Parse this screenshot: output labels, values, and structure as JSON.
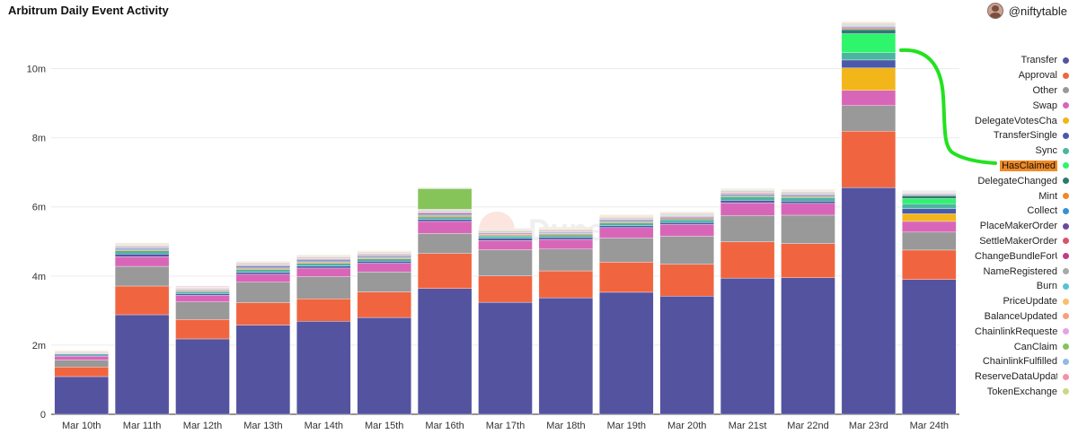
{
  "header": {
    "title": "Arbitrum Daily Event Activity",
    "author": "@niftytable"
  },
  "watermark": "Dune",
  "chart_data": {
    "type": "bar",
    "stacked": true,
    "title": "Arbitrum Daily Event Activity",
    "xlabel": "",
    "ylabel": "",
    "ylim": [
      0,
      11000000
    ],
    "yticks": [
      0,
      2000000,
      4000000,
      6000000,
      8000000,
      10000000
    ],
    "ytick_labels": [
      "0",
      "2m",
      "4m",
      "6m",
      "8m",
      "10m"
    ],
    "legend_position": "right",
    "highlighted_series": "HasClaimed",
    "categories": [
      "Mar 10th",
      "Mar 11th",
      "Mar 12th",
      "Mar 13th",
      "Mar 14th",
      "Mar 15th",
      "Mar 16th",
      "Mar 17th",
      "Mar 18th",
      "Mar 19th",
      "Mar 20th",
      "Mar 21st",
      "Mar 22nd",
      "Mar 23rd",
      "Mar 24th"
    ],
    "series": [
      {
        "name": "Transfer",
        "color": "#5453a0",
        "values": [
          1090000,
          2880000,
          2180000,
          2580000,
          2690000,
          2800000,
          3640000,
          3240000,
          3370000,
          3530000,
          3420000,
          3940000,
          3950000,
          6560000,
          3900000
        ]
      },
      {
        "name": "Approval",
        "color": "#f06540",
        "values": [
          280000,
          830000,
          560000,
          650000,
          650000,
          740000,
          1010000,
          760000,
          780000,
          870000,
          920000,
          1050000,
          990000,
          1630000,
          850000
        ]
      },
      {
        "name": "Other",
        "color": "#999999",
        "values": [
          200000,
          570000,
          510000,
          590000,
          640000,
          580000,
          580000,
          760000,
          630000,
          700000,
          810000,
          760000,
          820000,
          740000,
          520000
        ]
      },
      {
        "name": "Swap",
        "color": "#d866b8",
        "values": [
          110000,
          280000,
          190000,
          230000,
          250000,
          250000,
          350000,
          270000,
          280000,
          300000,
          340000,
          370000,
          340000,
          440000,
          310000
        ]
      },
      {
        "name": "DelegateVotesChanged",
        "color": "#f2b51a",
        "values": [
          0,
          0,
          0,
          0,
          0,
          0,
          0,
          0,
          0,
          0,
          0,
          0,
          0,
          650000,
          220000
        ]
      },
      {
        "name": "TransferSingle",
        "color": "#4a5aa8",
        "values": [
          30000,
          80000,
          50000,
          60000,
          60000,
          60000,
          60000,
          60000,
          60000,
          60000,
          60000,
          70000,
          70000,
          230000,
          150000
        ]
      },
      {
        "name": "Sync",
        "color": "#4bb5a0",
        "values": [
          40000,
          90000,
          60000,
          80000,
          80000,
          70000,
          70000,
          70000,
          70000,
          80000,
          80000,
          110000,
          100000,
          210000,
          140000
        ]
      },
      {
        "name": "HasClaimed",
        "color": "#2ef56b",
        "values": [
          0,
          0,
          0,
          0,
          0,
          0,
          0,
          0,
          0,
          0,
          0,
          0,
          0,
          550000,
          150000
        ]
      },
      {
        "name": "DelegateChanged",
        "color": "#2b7a72",
        "values": [
          0,
          0,
          0,
          0,
          0,
          0,
          0,
          0,
          0,
          0,
          0,
          0,
          0,
          120000,
          80000
        ]
      },
      {
        "name": "Mint",
        "color": "#f28728",
        "values": [
          10000,
          30000,
          20000,
          30000,
          30000,
          30000,
          40000,
          30000,
          30000,
          30000,
          30000,
          30000,
          30000,
          30000,
          20000
        ]
      },
      {
        "name": "Collect",
        "color": "#3a8fd6",
        "values": [
          10000,
          30000,
          20000,
          30000,
          30000,
          30000,
          30000,
          20000,
          20000,
          30000,
          30000,
          30000,
          30000,
          30000,
          20000
        ]
      },
      {
        "name": "PlaceMakerOrder",
        "color": "#6b4a9c",
        "values": [
          10000,
          20000,
          20000,
          30000,
          30000,
          20000,
          30000,
          20000,
          20000,
          20000,
          20000,
          20000,
          20000,
          20000,
          20000
        ]
      },
      {
        "name": "SettleMakerOrder",
        "color": "#d9536e",
        "values": [
          10000,
          20000,
          10000,
          20000,
          20000,
          20000,
          20000,
          20000,
          20000,
          20000,
          20000,
          20000,
          20000,
          20000,
          10000
        ]
      },
      {
        "name": "ChangeBundleForUser",
        "color": "#c23a8a",
        "values": [
          0,
          10000,
          10000,
          10000,
          10000,
          10000,
          10000,
          10000,
          10000,
          10000,
          10000,
          10000,
          10000,
          10000,
          10000
        ]
      },
      {
        "name": "NameRegistered",
        "color": "#a9a9a9",
        "values": [
          10000,
          20000,
          20000,
          20000,
          20000,
          20000,
          20000,
          20000,
          20000,
          20000,
          20000,
          20000,
          20000,
          20000,
          10000
        ]
      },
      {
        "name": "Burn",
        "color": "#57c3d2",
        "values": [
          10000,
          20000,
          10000,
          20000,
          20000,
          20000,
          20000,
          20000,
          20000,
          20000,
          20000,
          20000,
          20000,
          20000,
          10000
        ]
      },
      {
        "name": "PriceUpdate",
        "color": "#f6c06a",
        "values": [
          10000,
          20000,
          10000,
          20000,
          20000,
          20000,
          20000,
          20000,
          20000,
          20000,
          20000,
          20000,
          20000,
          20000,
          10000
        ]
      },
      {
        "name": "BalanceUpdated",
        "color": "#f7a07f",
        "values": [
          10000,
          20000,
          10000,
          20000,
          20000,
          20000,
          20000,
          20000,
          20000,
          20000,
          20000,
          20000,
          20000,
          20000,
          10000
        ]
      },
      {
        "name": "ChainlinkRequested",
        "color": "#e6a1e4",
        "values": [
          0,
          10000,
          10000,
          10000,
          10000,
          10000,
          10000,
          10000,
          10000,
          10000,
          10000,
          10000,
          10000,
          10000,
          10000
        ]
      },
      {
        "name": "CanClaim",
        "color": "#86c45a",
        "values": [
          0,
          0,
          0,
          0,
          0,
          0,
          600000,
          0,
          0,
          0,
          0,
          0,
          0,
          0,
          0
        ]
      },
      {
        "name": "ChainlinkFulfilled",
        "color": "#8fb9ea",
        "values": [
          0,
          10000,
          10000,
          10000,
          10000,
          10000,
          10000,
          10000,
          10000,
          10000,
          10000,
          10000,
          10000,
          10000,
          10000
        ]
      },
      {
        "name": "ReserveDataUpdated",
        "color": "#f491a8",
        "values": [
          0,
          10000,
          10000,
          10000,
          10000,
          10000,
          10000,
          10000,
          10000,
          10000,
          10000,
          10000,
          10000,
          10000,
          10000
        ]
      },
      {
        "name": "TokenExchange",
        "color": "#c6d98a",
        "values": [
          0,
          10000,
          0,
          10000,
          10000,
          10000,
          10000,
          10000,
          10000,
          10000,
          10000,
          10000,
          10000,
          10000,
          10000
        ]
      }
    ]
  }
}
